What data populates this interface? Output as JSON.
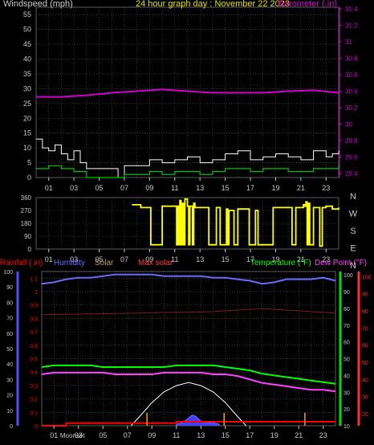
{
  "colors": {
    "background": "#000000",
    "grid": "#5a5a5a",
    "axis": "#c8c8c8",
    "wind": "#ffffff",
    "wind_avg": "#00c800",
    "barometer": "#d000d0",
    "direction": "#ffff00",
    "rain": "#ff0000",
    "humidity": "#6a6aff",
    "solar": "#c0a060",
    "max_solar": "#ff4040",
    "temperature": "#00ff00",
    "dew_point": "#ff40ff",
    "humidity_axis": "#5050ff",
    "temp_axis": "#00e000",
    "dew_axis": "#ff3030",
    "title": "#e0e000"
  },
  "chart_data": [
    {
      "type": "line",
      "name": "wind-barometer",
      "title": "24 hour graph day : November 22 2023",
      "left_label": "Windspeed (mph)",
      "right_label": "Barometer (.in)",
      "x_ticks": [
        "01",
        "03",
        "05",
        "07",
        "09",
        "11",
        "13",
        "15",
        "17",
        "19",
        "21",
        "23"
      ],
      "x_range": [
        0,
        24
      ],
      "wind_axis": {
        "min": 0,
        "max": 57.5,
        "ticks": [
          0,
          5,
          10,
          15,
          20,
          25,
          30,
          35,
          40,
          45,
          50,
          55
        ]
      },
      "baro_axis": {
        "min": 29.35,
        "max": 31.42,
        "ticks": [
          "29.4",
          "29.6",
          "29.8",
          "30",
          "30.2",
          "30.4",
          "30.6",
          "30.8",
          "31",
          "31.2",
          "31.4"
        ]
      },
      "barometer": {
        "x": [
          0,
          2,
          4,
          6,
          8,
          10,
          12,
          14,
          16,
          18,
          20,
          22,
          24
        ],
        "y": [
          30.33,
          30.33,
          30.35,
          30.38,
          30.4,
          30.42,
          30.4,
          30.38,
          30.38,
          30.38,
          30.4,
          30.41,
          30.38
        ]
      },
      "wind_gust": {
        "x": [
          0,
          0.5,
          1,
          1.5,
          2,
          2.5,
          3,
          3.5,
          4,
          6.5,
          7,
          8,
          9,
          10,
          11,
          12,
          13,
          14,
          15,
          16,
          17,
          18,
          19,
          20,
          21,
          22,
          23,
          23.5,
          24
        ],
        "y": [
          13,
          10,
          9,
          11,
          8,
          6,
          9,
          5,
          3,
          0,
          4,
          4,
          6,
          5,
          6,
          7,
          5,
          6,
          8,
          9,
          6,
          7,
          8,
          7,
          6,
          9,
          7,
          8,
          9
        ]
      },
      "wind_avg": {
        "x": [
          0,
          1,
          2,
          3,
          4,
          6.5,
          7,
          8,
          9,
          10,
          11,
          12,
          13,
          14,
          15,
          16,
          17,
          18,
          19,
          20,
          21,
          22,
          23,
          24
        ],
        "y": [
          3,
          4,
          3,
          2,
          0,
          0,
          1,
          1,
          2,
          1,
          2,
          2,
          1,
          2,
          3,
          3,
          2,
          3,
          3,
          2,
          2,
          3,
          3,
          4
        ]
      }
    },
    {
      "type": "line",
      "name": "wind-direction",
      "x_ticks": [
        "01",
        "03",
        "05",
        "07",
        "09",
        "11",
        "13",
        "15",
        "17",
        "19",
        "21",
        "23"
      ],
      "x_range": [
        0,
        24
      ],
      "y_axis": {
        "min": 0,
        "max": 360,
        "ticks": [
          0,
          90,
          180,
          270,
          360
        ]
      },
      "compass": [
        "N",
        "W",
        "S",
        "E",
        "N"
      ],
      "direction": {
        "x": [
          7.6,
          7.7,
          8.3,
          9.0,
          9.1,
          9.9,
          10.0,
          11.1,
          11.15,
          11.25,
          11.3,
          11.4,
          11.5,
          11.6,
          11.7,
          11.8,
          12.0,
          12.1,
          12.2,
          12.4,
          12.5,
          12.6,
          12.7,
          13.6,
          13.7,
          14.2,
          14.3,
          14.5,
          14.6,
          15.0,
          15.1,
          15.2,
          15.3,
          15.6,
          15.7,
          15.9,
          16.0,
          16.8,
          16.9,
          17.0,
          17.4,
          17.5,
          17.6,
          18.7,
          18.8,
          20.2,
          20.3,
          20.5,
          20.6,
          21.0,
          21.2,
          21.3,
          21.4,
          21.5,
          21.6,
          21.7,
          22.0,
          22.4,
          22.5,
          22.7,
          23.0,
          23.5,
          24
        ],
        "y": [
          310,
          310,
          290,
          290,
          30,
          30,
          300,
          300,
          30,
          300,
          30,
          340,
          30,
          320,
          30,
          350,
          300,
          30,
          300,
          30,
          320,
          290,
          290,
          290,
          30,
          30,
          290,
          290,
          30,
          30,
          280,
          30,
          270,
          270,
          30,
          30,
          280,
          280,
          30,
          30,
          270,
          270,
          30,
          30,
          290,
          290,
          30,
          30,
          290,
          290,
          310,
          300,
          330,
          30,
          320,
          30,
          290,
          290,
          20,
          290,
          300,
          280,
          290
        ]
      }
    },
    {
      "type": "line",
      "name": "weather",
      "left_labels": [
        "Rainfall (.in)",
        "Humidity",
        "Solar",
        "Max solar"
      ],
      "right_labels": [
        "Temperature (°F)",
        "Dew Point (°F)"
      ],
      "x_ticks": [
        "01",
        "03",
        "05",
        "07",
        "09",
        "11",
        "13",
        "15",
        "17",
        "19",
        "21",
        "23"
      ],
      "x_range": [
        0,
        24
      ],
      "humidity_axis": {
        "min": 0,
        "max": 100,
        "ticks": [
          0,
          10,
          20,
          30,
          40,
          50,
          60,
          70,
          80,
          90,
          100
        ]
      },
      "rain_axis": {
        "min": 0,
        "max": 1.15,
        "ticks": [
          "0",
          "0.1",
          "0.2",
          "0.3",
          "0.4",
          "0.5",
          "0.6",
          "0.7",
          "0.8",
          "0.9",
          "1",
          "1.1"
        ]
      },
      "temp_axis": {
        "min": 10,
        "max": 102,
        "ticks": [
          10,
          20,
          30,
          40,
          50,
          60,
          70,
          80,
          90,
          100
        ]
      },
      "dew_axis": {
        "min": 13,
        "max": 103,
        "ticks": [
          20,
          30,
          40,
          50,
          60,
          70,
          80,
          90,
          100
        ]
      },
      "humidity": {
        "x": [
          0,
          1,
          2,
          3,
          4,
          5,
          6,
          7,
          8,
          9,
          10,
          11,
          12,
          13,
          14,
          15,
          16,
          17,
          18,
          19,
          20,
          21,
          22,
          23,
          24
        ],
        "y": [
          92,
          93,
          95,
          96,
          96,
          97,
          98,
          98,
          98,
          98,
          97,
          97,
          97,
          97,
          96,
          96,
          95,
          94,
          92,
          93,
          95,
          95,
          95,
          96,
          94
        ]
      },
      "temperature": {
        "x": [
          0,
          1,
          2,
          3,
          4,
          5,
          6,
          7,
          8,
          9,
          10,
          11,
          12,
          13,
          14,
          15,
          16,
          17,
          18,
          19,
          20,
          21,
          22,
          23,
          24
        ],
        "y": [
          45,
          46,
          46,
          46,
          46,
          45,
          45,
          45,
          45,
          45,
          45,
          46,
          46,
          46,
          46,
          45,
          44,
          43,
          41,
          40,
          39,
          38,
          37,
          36,
          35
        ]
      },
      "dew_point": {
        "x": [
          0,
          1,
          2,
          3,
          4,
          5,
          6,
          7,
          8,
          9,
          10,
          11,
          12,
          13,
          14,
          15,
          16,
          17,
          18,
          19,
          20,
          21,
          22,
          23,
          24
        ],
        "y": [
          43,
          44,
          44,
          44,
          44,
          44,
          43,
          43,
          43,
          43,
          44,
          44,
          44,
          44,
          43,
          43,
          42,
          40,
          38,
          37,
          36,
          35,
          34,
          34,
          33
        ]
      },
      "max_solar": {
        "x": [
          7.3,
          8,
          9,
          10,
          11,
          12,
          13,
          14,
          15,
          16,
          16.7
        ],
        "y": [
          0,
          6,
          15,
          22,
          26,
          28,
          26,
          22,
          15,
          6,
          0
        ]
      },
      "solar": {
        "x": [
          11,
          11.5,
          12,
          12.3,
          12.6,
          13,
          13.5,
          14,
          14.5
        ],
        "y": [
          1,
          2,
          5,
          7,
          6,
          3,
          2,
          2,
          1
        ]
      },
      "rainfall": {
        "x": [
          0,
          1.5,
          2,
          10.8,
          11,
          24
        ],
        "y": [
          0.0,
          0.0,
          0.02,
          0.02,
          0.03,
          0.03
        ]
      },
      "moon_labels": [
        "Moonset"
      ],
      "overlay_tick": "03"
    }
  ]
}
